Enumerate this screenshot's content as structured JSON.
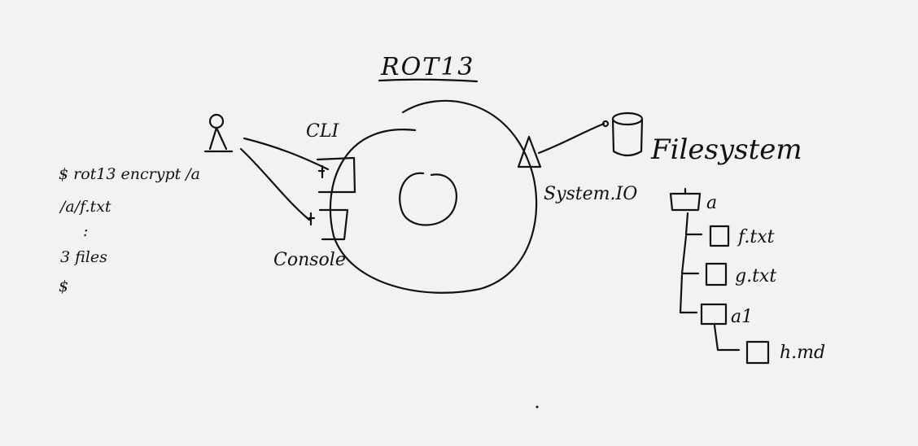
{
  "diagram": {
    "title": "ROT13",
    "interfaces": {
      "cli": "CLI",
      "console": "Console",
      "system_io": "System.IO",
      "filesystem": "Filesystem"
    },
    "terminal": {
      "lines": [
        "$ rot13 encrypt /a",
        "/a/f.txt",
        ":",
        "3 files",
        "$"
      ]
    },
    "tree": {
      "root": "a",
      "items": [
        "f.txt",
        "g.txt",
        "a1",
        "h.md"
      ]
    }
  }
}
